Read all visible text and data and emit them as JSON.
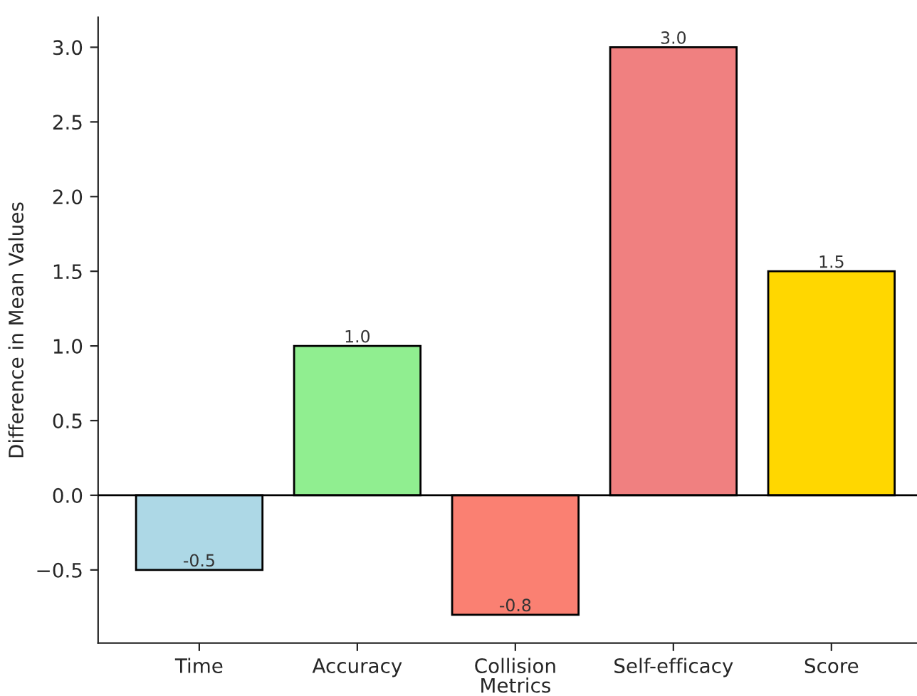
{
  "chart_data": {
    "type": "bar",
    "xlabel": "Metrics",
    "ylabel": "Difference in Mean Values",
    "categories": [
      "Time",
      "Accuracy",
      "Collision",
      "Self-efficacy",
      "Score"
    ],
    "values": [
      -0.5,
      1.0,
      -0.8,
      3.0,
      1.5
    ],
    "colors": [
      "#add8e6",
      "#90ee90",
      "#fa8072",
      "#f08080",
      "#ffd700"
    ],
    "value_labels": [
      "-0.5",
      "1.0",
      "-0.8",
      "3.0",
      "1.5"
    ],
    "ylim": [
      -0.99,
      3.2
    ],
    "yticks": [
      {
        "value": -0.5,
        "label": "−0.5"
      },
      {
        "value": 0,
        "label": "0.0"
      },
      0.5,
      {
        "value": 1,
        "label": "1.0"
      },
      1.5,
      {
        "value": 2,
        "label": "2.0"
      },
      2.5,
      {
        "value": 3,
        "label": "3.0"
      }
    ],
    "ref_lines": [
      {
        "axis": "y",
        "value": 0,
        "color": "#000000"
      }
    ],
    "grid": false,
    "legend": false
  }
}
